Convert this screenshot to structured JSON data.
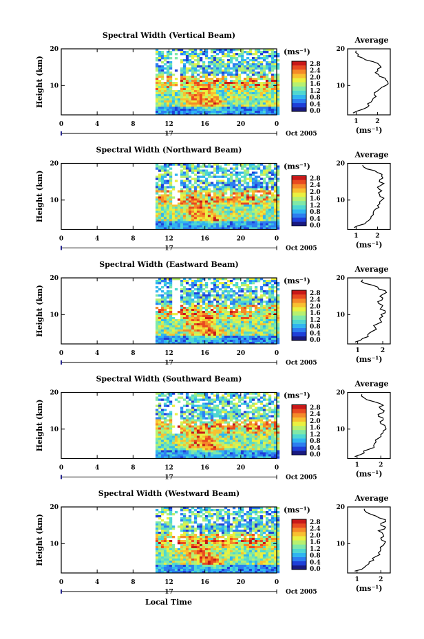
{
  "figure": {
    "xlabel": "Local Time",
    "date_label": "Oct 2005",
    "day_label": "17",
    "ylabel": "Height (km)",
    "avg_title": "Average",
    "unit_label": "(ms⁻¹)"
  },
  "colorscale": {
    "ticks": [
      "0.0",
      "0.4",
      "0.8",
      "1.2",
      "1.6",
      "2.0",
      "2.4",
      "2.8"
    ],
    "colors": [
      "#1a1a80",
      "#1f3fd8",
      "#2d7ef0",
      "#30b5f0",
      "#4fd8d0",
      "#7fe8a8",
      "#b7f070",
      "#eaf040",
      "#f8c030",
      "#f58a28",
      "#e84a20",
      "#c81818"
    ]
  },
  "panels": [
    {
      "title": "Spectral Width (Vertical Beam)"
    },
    {
      "title": "Spectral Width (Northward Beam)"
    },
    {
      "title": "Spectral Width (Eastward Beam)"
    },
    {
      "title": "Spectral Width (Southward Beam)"
    },
    {
      "title": "Spectral Width (Westward Beam)"
    }
  ],
  "chart_data": [
    {
      "type": "heatmap",
      "title": "Spectral Width (Vertical Beam)",
      "xlabel": "Local Time",
      "ylabel": "Height (km)",
      "x_ticks": [
        "0",
        "4",
        "8",
        "12",
        "16",
        "20",
        "0"
      ],
      "xlim": [
        0,
        24
      ],
      "y_ticks": [
        "20",
        "10"
      ],
      "ylim": [
        2,
        20
      ],
      "data_start_hour": 10.5,
      "colorbar_label": "(ms⁻¹)",
      "colorbar_range": [
        0,
        2.8
      ]
    },
    {
      "type": "line",
      "title": "Average",
      "xlabel": "(ms⁻¹)",
      "ylabel": "",
      "x_ticks": [
        "1",
        "2"
      ],
      "xlim": [
        0.6,
        2.6
      ],
      "y_ticks": [
        "20",
        "10"
      ],
      "ylim": [
        2,
        20
      ],
      "series": [
        {
          "values": [
            [
              0.85,
              2.5
            ],
            [
              1.3,
              3.5
            ],
            [
              1.6,
              4.5
            ],
            [
              1.7,
              5.5
            ],
            [
              1.8,
              6.5
            ],
            [
              1.85,
              7.5
            ],
            [
              2.0,
              8.5
            ],
            [
              2.2,
              9.5
            ],
            [
              2.5,
              10.5
            ],
            [
              2.4,
              11.5
            ],
            [
              2.1,
              12.5
            ],
            [
              1.9,
              13.5
            ],
            [
              2.0,
              14.5
            ],
            [
              2.1,
              15.5
            ],
            [
              1.8,
              16.5
            ],
            [
              1.3,
              17.5
            ],
            [
              1.1,
              18.5
            ],
            [
              1.0,
              19.5
            ]
          ]
        }
      ]
    },
    {
      "type": "heatmap",
      "title": "Spectral Width (Northward Beam)",
      "xlabel": "Local Time",
      "ylabel": "Height (km)",
      "x_ticks": [
        "0",
        "4",
        "8",
        "12",
        "16",
        "20",
        "0"
      ],
      "xlim": [
        0,
        24
      ],
      "y_ticks": [
        "20",
        "10"
      ],
      "ylim": [
        2,
        20
      ],
      "data_start_hour": 10.5,
      "colorbar_label": "(ms⁻¹)",
      "colorbar_range": [
        0,
        2.8
      ]
    },
    {
      "type": "line",
      "title": "Average",
      "xlabel": "(ms⁻¹)",
      "ylabel": "",
      "x_ticks": [
        "1",
        "2"
      ],
      "xlim": [
        0.6,
        2.6
      ],
      "y_ticks": [
        "20",
        "10"
      ],
      "ylim": [
        2,
        20
      ],
      "series": [
        {
          "values": [
            [
              0.9,
              2.5
            ],
            [
              1.4,
              3.5
            ],
            [
              1.6,
              4.5
            ],
            [
              1.7,
              5.5
            ],
            [
              1.8,
              6.5
            ],
            [
              1.9,
              7.5
            ],
            [
              2.0,
              8.5
            ],
            [
              2.1,
              9.5
            ],
            [
              2.3,
              10.5
            ],
            [
              2.1,
              11.5
            ],
            [
              2.2,
              12.5
            ],
            [
              2.0,
              13.5
            ],
            [
              2.3,
              14.5
            ],
            [
              2.1,
              15.5
            ],
            [
              2.2,
              16.5
            ],
            [
              2.0,
              17.5
            ],
            [
              1.5,
              18.5
            ],
            [
              1.3,
              19.5
            ]
          ]
        }
      ]
    },
    {
      "type": "heatmap",
      "title": "Spectral Width (Eastward Beam)",
      "xlabel": "Local Time",
      "ylabel": "Height (km)",
      "x_ticks": [
        "0",
        "4",
        "8",
        "12",
        "16",
        "20",
        "0"
      ],
      "xlim": [
        0,
        24
      ],
      "y_ticks": [
        "20",
        "10"
      ],
      "ylim": [
        2,
        20
      ],
      "data_start_hour": 10.5,
      "colorbar_label": "(ms⁻¹)",
      "colorbar_range": [
        0,
        2.8
      ]
    },
    {
      "type": "line",
      "title": "Average",
      "xlabel": "(ms⁻¹)",
      "ylabel": "",
      "x_ticks": [
        "1",
        "2"
      ],
      "xlim": [
        0.6,
        2.3
      ],
      "y_ticks": [
        "20",
        "10"
      ],
      "ylim": [
        2,
        20
      ],
      "series": [
        {
          "values": [
            [
              0.9,
              2.5
            ],
            [
              1.2,
              3.5
            ],
            [
              1.4,
              4.5
            ],
            [
              1.6,
              5.5
            ],
            [
              1.7,
              6.5
            ],
            [
              1.8,
              7.5
            ],
            [
              1.9,
              8.5
            ],
            [
              2.0,
              9.5
            ],
            [
              2.1,
              10.5
            ],
            [
              1.9,
              11.5
            ],
            [
              2.0,
              12.5
            ],
            [
              1.8,
              13.5
            ],
            [
              2.0,
              14.5
            ],
            [
              2.0,
              15.5
            ],
            [
              2.1,
              16.5
            ],
            [
              1.8,
              17.5
            ],
            [
              1.3,
              18.5
            ],
            [
              1.2,
              19.5
            ]
          ]
        }
      ]
    },
    {
      "type": "heatmap",
      "title": "Spectral Width (Southward Beam)",
      "xlabel": "Local Time",
      "ylabel": "Height (km)",
      "x_ticks": [
        "0",
        "4",
        "8",
        "12",
        "16",
        "20",
        "0"
      ],
      "xlim": [
        0,
        24
      ],
      "y_ticks": [
        "20",
        "10"
      ],
      "ylim": [
        2,
        20
      ],
      "data_start_hour": 10.5,
      "colorbar_label": "(ms⁻¹)",
      "colorbar_range": [
        0,
        2.8
      ]
    },
    {
      "type": "line",
      "title": "Average",
      "xlabel": "(ms⁻¹)",
      "ylabel": "",
      "x_ticks": [
        "1",
        "2"
      ],
      "xlim": [
        0.6,
        2.4
      ],
      "y_ticks": [
        "20",
        "10"
      ],
      "ylim": [
        2,
        20
      ],
      "series": [
        {
          "values": [
            [
              0.9,
              2.5
            ],
            [
              1.3,
              3.5
            ],
            [
              1.5,
              4.5
            ],
            [
              1.7,
              5.5
            ],
            [
              1.8,
              6.5
            ],
            [
              1.9,
              7.5
            ],
            [
              2.0,
              8.5
            ],
            [
              2.1,
              9.5
            ],
            [
              2.2,
              10.5
            ],
            [
              2.0,
              11.5
            ],
            [
              2.1,
              12.5
            ],
            [
              1.9,
              13.5
            ],
            [
              2.1,
              14.5
            ],
            [
              2.0,
              15.5
            ],
            [
              2.1,
              16.5
            ],
            [
              1.7,
              17.5
            ],
            [
              1.3,
              18.5
            ],
            [
              1.2,
              19.5
            ]
          ]
        }
      ]
    },
    {
      "type": "heatmap",
      "title": "Spectral Width (Westward Beam)",
      "xlabel": "Local Time",
      "ylabel": "Height (km)",
      "x_ticks": [
        "0",
        "4",
        "8",
        "12",
        "16",
        "20",
        "0"
      ],
      "xlim": [
        0,
        24
      ],
      "y_ticks": [
        "20",
        "10"
      ],
      "ylim": [
        2,
        20
      ],
      "data_start_hour": 10.5,
      "colorbar_label": "(ms⁻¹)",
      "colorbar_range": [
        0,
        2.8
      ]
    },
    {
      "type": "line",
      "title": "Average",
      "xlabel": "(ms⁻¹)",
      "ylabel": "",
      "x_ticks": [
        "1",
        "2"
      ],
      "xlim": [
        0.6,
        2.4
      ],
      "y_ticks": [
        "20",
        "10"
      ],
      "ylim": [
        2,
        20
      ],
      "series": [
        {
          "values": [
            [
              0.9,
              2.5
            ],
            [
              1.3,
              3.5
            ],
            [
              1.5,
              4.5
            ],
            [
              1.7,
              5.5
            ],
            [
              1.8,
              6.5
            ],
            [
              1.9,
              7.5
            ],
            [
              2.0,
              8.5
            ],
            [
              2.1,
              9.5
            ],
            [
              2.2,
              10.5
            ],
            [
              2.0,
              11.5
            ],
            [
              2.1,
              12.5
            ],
            [
              1.9,
              13.5
            ],
            [
              2.2,
              14.5
            ],
            [
              2.0,
              15.5
            ],
            [
              2.2,
              16.5
            ],
            [
              1.8,
              17.5
            ],
            [
              1.4,
              18.5
            ],
            [
              1.3,
              19.5
            ]
          ]
        }
      ]
    }
  ]
}
